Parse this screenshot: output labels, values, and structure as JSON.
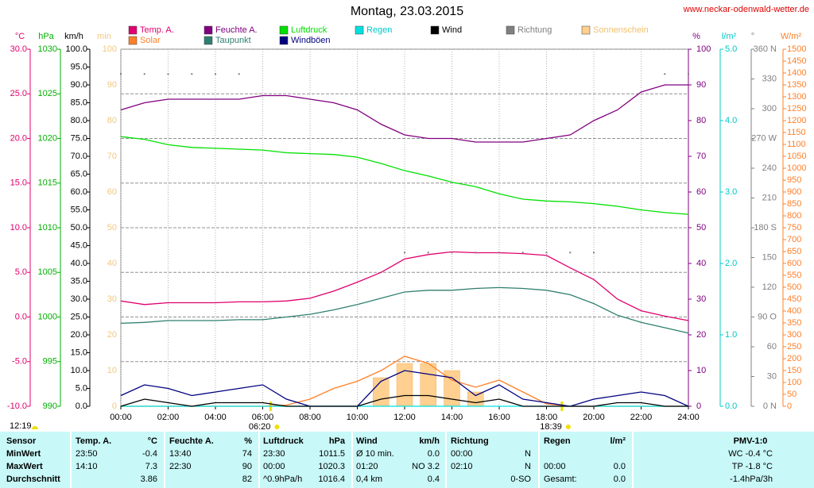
{
  "chart_data": {
    "type": "line",
    "title": "Montag, 23.03.2015",
    "source": "www.neckar-odenwald-wetter.de",
    "grid": true,
    "x": [
      0,
      1,
      2,
      3,
      4,
      5,
      6,
      7,
      8,
      9,
      10,
      11,
      12,
      13,
      14,
      15,
      16,
      17,
      18,
      19,
      20,
      21,
      22,
      23,
      24
    ],
    "xlim": [
      0,
      24
    ],
    "xticks": [
      {
        "value": 0,
        "label": "00:00"
      },
      {
        "value": 2,
        "label": "02:00"
      },
      {
        "value": 4,
        "label": "04:00"
      },
      {
        "value": 6,
        "label": "06:00"
      },
      {
        "value": 8,
        "label": "08:00"
      },
      {
        "value": 10,
        "label": "10:00"
      },
      {
        "value": 12,
        "label": "12:00"
      },
      {
        "value": 14,
        "label": "14:00"
      },
      {
        "value": 16,
        "label": "16:00"
      },
      {
        "value": 18,
        "label": "18:00"
      },
      {
        "value": 20,
        "label": "20:00"
      },
      {
        "value": 22,
        "label": "22:00"
      },
      {
        "value": 24,
        "label": "24:00"
      }
    ],
    "sun_markers": [
      {
        "value": 6.333,
        "label": "06:20"
      },
      {
        "value": 18.65,
        "label": "18:39"
      }
    ],
    "noon_label": "12:19",
    "axes": [
      {
        "label": "°C",
        "color": "#e0006e",
        "lim": [
          -10,
          30
        ],
        "ticks": [
          {
            "value": 30,
            "label": "30.0"
          },
          {
            "value": 25,
            "label": "25.0"
          },
          {
            "value": 20,
            "label": "20.0"
          },
          {
            "value": 15,
            "label": "15.0"
          },
          {
            "value": 10,
            "label": "10.0"
          },
          {
            "value": 5,
            "label": "5.0"
          },
          {
            "value": 0,
            "label": "0.0"
          },
          {
            "value": -5,
            "label": "-5.0"
          },
          {
            "value": -10,
            "label": "-10.0"
          }
        ]
      },
      {
        "label": "hPa",
        "color": "#00b000",
        "lim": [
          990,
          1030
        ],
        "ticks": [
          1030,
          1025,
          1020,
          1015,
          1010,
          1005,
          1000,
          995,
          990
        ]
      },
      {
        "label": "km/h",
        "color": "#000000",
        "lim": [
          0,
          100
        ],
        "ticks": [
          {
            "value": 100,
            "label": "100.0"
          },
          {
            "value": 95,
            "label": "95.0"
          },
          {
            "value": 90,
            "label": "90.0"
          },
          {
            "value": 85,
            "label": "85.0"
          },
          {
            "value": 80,
            "label": "80.0"
          },
          {
            "value": 75,
            "label": "75.0"
          },
          {
            "value": 70,
            "label": "70.0"
          },
          {
            "value": 65,
            "label": "65.0"
          },
          {
            "value": 60,
            "label": "60.0"
          },
          {
            "value": 55,
            "label": "55.0"
          },
          {
            "value": 50,
            "label": "50.0"
          },
          {
            "value": 45,
            "label": "45.0"
          },
          {
            "value": 40,
            "label": "40.0"
          },
          {
            "value": 35,
            "label": "35.0"
          },
          {
            "value": 30,
            "label": "30.0"
          },
          {
            "value": 25,
            "label": "25.0"
          },
          {
            "value": 20,
            "label": "20.0"
          },
          {
            "value": 15,
            "label": "15.0"
          },
          {
            "value": 10,
            "label": "10.0"
          },
          {
            "value": 5,
            "label": "5.0"
          },
          {
            "value": 0,
            "label": "0.0"
          }
        ]
      },
      {
        "label": "min",
        "color": "#f0c880",
        "lim": [
          0,
          100
        ],
        "ticks": [
          100,
          90,
          80,
          70,
          60,
          50,
          40,
          30,
          20,
          10,
          0
        ]
      },
      {
        "label": "%",
        "color": "#800080",
        "lim": [
          0,
          100
        ],
        "ticks": [
          100,
          90,
          80,
          70,
          60,
          50,
          40,
          30,
          20,
          10,
          0
        ]
      },
      {
        "label": "l/m²",
        "color": "#00c8c8",
        "lim": [
          0,
          5
        ],
        "ticks": [
          {
            "value": 5,
            "label": "5.0"
          },
          {
            "value": 4,
            "label": "4.0"
          },
          {
            "value": 3,
            "label": "3.0"
          },
          {
            "value": 2,
            "label": "2.0"
          },
          {
            "value": 1,
            "label": "1.0"
          },
          {
            "value": 0,
            "label": "0.0"
          }
        ]
      },
      {
        "label": "°",
        "color": "#808080",
        "lim": [
          0,
          360
        ],
        "ticks": [
          {
            "value": 360,
            "label": "360 N"
          },
          330,
          300,
          {
            "value": 270,
            "label": "270 W"
          },
          240,
          210,
          {
            "value": 180,
            "label": "180 S"
          },
          150,
          120,
          {
            "value": 90,
            "label": "90 O"
          },
          60,
          30,
          {
            "value": 0,
            "label": "0 N"
          }
        ]
      },
      {
        "label": "W/m²",
        "color": "#ff7f27",
        "lim": [
          0,
          1500
        ],
        "ticks": [
          1500,
          1450,
          1400,
          1350,
          1300,
          1250,
          1200,
          1150,
          1100,
          1050,
          1000,
          950,
          900,
          850,
          800,
          750,
          700,
          650,
          600,
          550,
          500,
          450,
          400,
          350,
          300,
          250,
          200,
          150,
          100,
          50,
          0
        ]
      }
    ],
    "series": [
      {
        "name": "Temp. A.",
        "type": "line",
        "axis": 0,
        "color": "#e0006e",
        "values": [
          1.8,
          1.4,
          1.6,
          1.6,
          1.6,
          1.7,
          1.7,
          1.8,
          2.1,
          2.9,
          3.9,
          5.0,
          6.5,
          7.0,
          7.3,
          7.2,
          7.2,
          7.1,
          6.9,
          5.5,
          4.2,
          2.0,
          0.7,
          0.1,
          -0.4
        ]
      },
      {
        "name": "Solar",
        "type": "line",
        "axis": 7,
        "color": "#ff7f27",
        "values": [
          0,
          0,
          0,
          0,
          0,
          0,
          0,
          5,
          30,
          75,
          105,
          150,
          210,
          180,
          110,
          80,
          110,
          60,
          10,
          0,
          0,
          0,
          0,
          0,
          0
        ]
      },
      {
        "name": "Feuchte A.",
        "type": "line",
        "axis": 4,
        "color": "#800080",
        "values": [
          83,
          85,
          86,
          86,
          86,
          86,
          87,
          87,
          86,
          85,
          83,
          79,
          76,
          75,
          75,
          74,
          74,
          74,
          75,
          76,
          80,
          83,
          88,
          90,
          90
        ]
      },
      {
        "name": "Taupunkt",
        "type": "line",
        "axis": 0,
        "color": "#2f7f6f",
        "values": [
          -0.7,
          -0.6,
          -0.4,
          -0.4,
          -0.4,
          -0.3,
          -0.3,
          0.0,
          0.3,
          0.8,
          1.4,
          2.1,
          2.8,
          3.0,
          3.0,
          3.2,
          3.3,
          3.2,
          3.0,
          2.5,
          1.5,
          0.2,
          -0.6,
          -1.2,
          -1.8
        ]
      },
      {
        "name": "Luftdruck",
        "type": "line",
        "axis": 1,
        "color": "#00e000",
        "values": [
          1020.2,
          1019.9,
          1019.3,
          1019.0,
          1018.9,
          1018.8,
          1018.7,
          1018.4,
          1018.3,
          1018.2,
          1017.9,
          1017.2,
          1016.4,
          1015.8,
          1015.1,
          1014.6,
          1013.8,
          1013.2,
          1013.0,
          1012.9,
          1012.7,
          1012.4,
          1012.0,
          1011.7,
          1011.5
        ]
      },
      {
        "name": "Windböen",
        "type": "line",
        "axis": 2,
        "color": "#000080",
        "values": [
          3,
          6,
          5,
          3,
          4,
          5,
          6,
          2,
          0,
          0,
          0,
          7,
          10,
          9,
          8,
          3,
          6,
          2,
          1,
          0,
          2,
          3,
          4,
          3,
          0
        ]
      },
      {
        "name": "Regen",
        "type": "line",
        "axis": 5,
        "color": "#00e0e0",
        "values": [
          0,
          0,
          0,
          0,
          0,
          0,
          0,
          0,
          0,
          0,
          0,
          0,
          0,
          0,
          0,
          0,
          0,
          0,
          0,
          0,
          0,
          0,
          0,
          0,
          0
        ]
      },
      {
        "name": "Wind",
        "type": "line",
        "axis": 2,
        "color": "#000000",
        "values": [
          0,
          2,
          1,
          0,
          1,
          1,
          1,
          0,
          0,
          0,
          0,
          2,
          3,
          3,
          2,
          1,
          2,
          0,
          0,
          0,
          0,
          1,
          1,
          0,
          0
        ]
      },
      {
        "name": "Richtung",
        "type": "scatter",
        "axis": 6,
        "color": "#808080",
        "values": [
          335,
          335,
          335,
          335,
          335,
          335,
          null,
          null,
          null,
          null,
          null,
          null,
          155,
          155,
          155,
          155,
          155,
          155,
          155,
          155,
          155,
          null,
          null,
          335,
          335
        ]
      },
      {
        "name": "Sonnenschein",
        "type": "bar",
        "axis": 3,
        "color": "#ffd090",
        "values": [
          0,
          0,
          0,
          0,
          0,
          0,
          0,
          0,
          0,
          0,
          0,
          8,
          12,
          12,
          10,
          4,
          0,
          0,
          0,
          0,
          0,
          0,
          0,
          0,
          0
        ]
      }
    ]
  },
  "table": {
    "header": [
      "Sensor",
      "Temp. A.",
      "°C",
      "Feuchte A.",
      "%",
      "Luftdruck",
      "hPa",
      "Wind",
      "km/h",
      "Richtung",
      null,
      "Regen",
      "l/m²",
      "PMV-1:0"
    ],
    "rows": [
      [
        "MinWert",
        "23:50",
        "-0.4",
        "13:40",
        "74",
        "23:30",
        "1011.5",
        "Ø 10 min.",
        "0.0",
        "00:00",
        "N",
        null,
        null,
        "WC -0.4 °C"
      ],
      [
        "MaxWert",
        "14:10",
        "7.3",
        "22:30",
        "90",
        "00:00",
        "1020.3",
        "01:20",
        "NO 3.2",
        "02:10",
        "N",
        "00:00",
        "0.0",
        "TP -1.8 °C"
      ],
      [
        "Durchschnitt",
        null,
        "3.86",
        null,
        "82",
        "^0.9hPa/h",
        "1016.4",
        "0,4 km",
        "0.4",
        null,
        "0-SO",
        "Gesamt:",
        "0.0",
        "-1.4hPa/3h"
      ]
    ]
  }
}
